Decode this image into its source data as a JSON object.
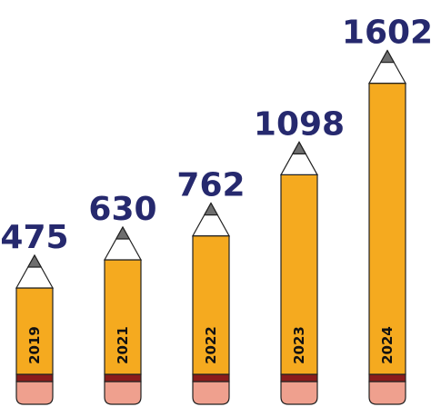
{
  "chart_data": {
    "type": "pencil",
    "categories": [
      "2019",
      "2021",
      "2022",
      "2023",
      "2024"
    ],
    "values": [
      475,
      630,
      762,
      1098,
      1602
    ],
    "color": "#f5aa1f",
    "ylim": [
      0,
      2000
    ]
  }
}
